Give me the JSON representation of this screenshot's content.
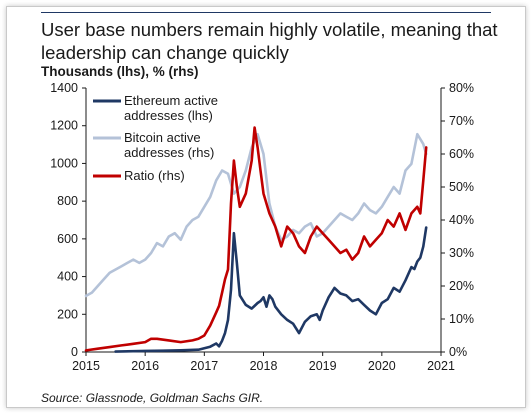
{
  "chart_data": {
    "type": "line",
    "title": "User base numbers remain highly volatile, meaning that leadership can change quickly",
    "subtitle": "Thousands (lhs), % (rhs)",
    "source": "Source: Glassnode, Goldman Sachs GIR.",
    "x_range": [
      2015,
      2021
    ],
    "x_ticks": [
      "2015",
      "2016",
      "2017",
      "2018",
      "2019",
      "2020",
      "2021"
    ],
    "ylim_left": [
      0,
      1400
    ],
    "y_ticks_left": [
      "0",
      "200",
      "400",
      "600",
      "800",
      "1000",
      "1200",
      "1400"
    ],
    "ylim_right": [
      0,
      80
    ],
    "y_ticks_right": [
      "0%",
      "10%",
      "20%",
      "30%",
      "40%",
      "50%",
      "60%",
      "70%",
      "80%"
    ],
    "grid": false,
    "legend_placement": "top-left",
    "colors": {
      "ethereum": "#1f3864",
      "bitcoin": "#b4c2d8",
      "ratio": "#c00000"
    },
    "series": [
      {
        "name": "Ethereum active addresses (lhs)",
        "axis": "left",
        "x": [
          2015.5,
          2015.8,
          2016.0,
          2016.3,
          2016.6,
          2016.9,
          2017.0,
          2017.1,
          2017.2,
          2017.25,
          2017.3,
          2017.35,
          2017.4,
          2017.45,
          2017.5,
          2017.55,
          2017.6,
          2017.7,
          2017.8,
          2017.9,
          2017.95,
          2018.0,
          2018.05,
          2018.1,
          2018.15,
          2018.2,
          2018.3,
          2018.4,
          2018.5,
          2018.6,
          2018.7,
          2018.8,
          2018.9,
          2018.95,
          2019.0,
          2019.1,
          2019.2,
          2019.3,
          2019.4,
          2019.5,
          2019.6,
          2019.7,
          2019.8,
          2019.9,
          2020.0,
          2020.1,
          2020.2,
          2020.3,
          2020.4,
          2020.5,
          2020.55,
          2020.6,
          2020.65,
          2020.7,
          2020.75
        ],
        "values": [
          2,
          4,
          6,
          7,
          9,
          12,
          20,
          28,
          45,
          30,
          60,
          100,
          170,
          330,
          630,
          470,
          300,
          250,
          230,
          260,
          270,
          290,
          240,
          300,
          280,
          240,
          200,
          170,
          150,
          100,
          160,
          190,
          200,
          170,
          220,
          290,
          340,
          310,
          300,
          270,
          280,
          250,
          220,
          200,
          260,
          280,
          340,
          320,
          380,
          450,
          440,
          480,
          500,
          560,
          660
        ]
      },
      {
        "name": "Bitcoin active addresses (rhs)",
        "axis": "right",
        "x": [
          2015.0,
          2015.1,
          2015.2,
          2015.3,
          2015.4,
          2015.5,
          2015.6,
          2015.7,
          2015.8,
          2015.9,
          2016.0,
          2016.1,
          2016.2,
          2016.3,
          2016.4,
          2016.5,
          2016.6,
          2016.7,
          2016.8,
          2016.9,
          2017.0,
          2017.1,
          2017.2,
          2017.3,
          2017.4,
          2017.5,
          2017.6,
          2017.7,
          2017.8,
          2017.9,
          2018.0,
          2018.1,
          2018.2,
          2018.3,
          2018.4,
          2018.5,
          2018.6,
          2018.7,
          2018.8,
          2018.9,
          2019.0,
          2019.1,
          2019.2,
          2019.3,
          2019.4,
          2019.5,
          2019.6,
          2019.7,
          2019.8,
          2019.9,
          2020.0,
          2020.1,
          2020.2,
          2020.3,
          2020.4,
          2020.5,
          2020.6,
          2020.7,
          2020.75
        ],
        "values": [
          17,
          18,
          20,
          22,
          24,
          25,
          26,
          27,
          28,
          27,
          28,
          30,
          33,
          32,
          35,
          36,
          34,
          38,
          40,
          41,
          44,
          47,
          52,
          55,
          54,
          48,
          50,
          55,
          62,
          66,
          60,
          45,
          38,
          34,
          35,
          37,
          36,
          38,
          39,
          35,
          36,
          38,
          40,
          42,
          41,
          40,
          42,
          45,
          43,
          42,
          44,
          47,
          50,
          48,
          55,
          57,
          66,
          63,
          60
        ]
      },
      {
        "name": "Ratio (rhs)",
        "axis": "right",
        "x": [
          2015.0,
          2015.2,
          2015.4,
          2015.6,
          2015.8,
          2016.0,
          2016.1,
          2016.2,
          2016.4,
          2016.6,
          2016.8,
          2016.9,
          2017.0,
          2017.1,
          2017.2,
          2017.25,
          2017.3,
          2017.35,
          2017.4,
          2017.45,
          2017.5,
          2017.55,
          2017.6,
          2017.7,
          2017.8,
          2017.85,
          2017.9,
          2017.95,
          2018.0,
          2018.1,
          2018.2,
          2018.3,
          2018.4,
          2018.5,
          2018.6,
          2018.7,
          2018.8,
          2018.9,
          2019.0,
          2019.1,
          2019.2,
          2019.3,
          2019.4,
          2019.5,
          2019.6,
          2019.7,
          2019.8,
          2019.9,
          2020.0,
          2020.1,
          2020.2,
          2020.3,
          2020.4,
          2020.5,
          2020.6,
          2020.65,
          2020.7,
          2020.75
        ],
        "values": [
          0.5,
          1,
          1.5,
          2,
          2.5,
          3,
          4,
          4,
          3.5,
          3,
          3.5,
          4,
          5,
          8,
          12,
          14,
          18,
          22,
          25,
          45,
          58,
          50,
          44,
          48,
          58,
          68,
          62,
          55,
          48,
          42,
          38,
          32,
          38,
          36,
          32,
          30,
          35,
          38,
          36,
          34,
          32,
          30,
          31,
          28,
          30,
          35,
          32,
          34,
          36,
          40,
          38,
          42,
          37,
          42,
          44,
          42,
          52,
          62
        ]
      }
    ]
  }
}
